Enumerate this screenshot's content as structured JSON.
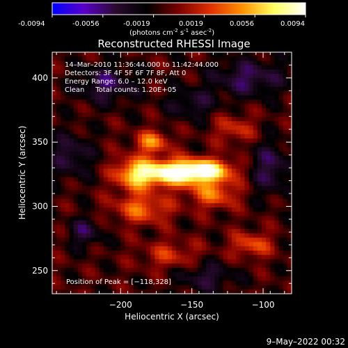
{
  "colorbar": {
    "ticks": [
      "-0.0094",
      "-0.0056",
      "-0.0019",
      "0.0019",
      "0.0056",
      "0.0094"
    ],
    "units_main": "(photons cm",
    "units_exp1": "-2",
    "units_mid": " s",
    "units_exp2": "-1",
    "units_end": " asec",
    "units_exp3": "-2",
    "units_close": ")",
    "stops": [
      "#0000ff",
      "#5a00c8",
      "#2a0a30",
      "#000000",
      "#7a0000",
      "#e03000",
      "#ff9000",
      "#ffff60",
      "#ffffff"
    ]
  },
  "chart_data": {
    "type": "heatmap",
    "title": "Reconstructed RHESSI Image",
    "xlabel": "Heliocentric X (arcsec)",
    "ylabel": "Heliocentric Y (arcsec)",
    "xlim": [
      -248,
      -80
    ],
    "ylim": [
      232,
      420
    ],
    "xticks": [
      -200,
      -150,
      -100
    ],
    "xtick_labels": [
      "−200",
      "−150",
      "−100"
    ],
    "yticks": [
      250,
      300,
      350,
      400
    ],
    "ytick_labels": [
      "250",
      "300",
      "350",
      "400"
    ],
    "value_range": [
      -0.0094,
      0.0094
    ],
    "peak": [
      -118,
      328
    ],
    "sources": [
      {
        "x": -165,
        "y": 326,
        "sx": 16,
        "sy": 7,
        "amp": 0.0094
      },
      {
        "x": -140,
        "y": 328,
        "sx": 14,
        "sy": 6,
        "amp": 0.0082
      },
      {
        "x": -190,
        "y": 325,
        "sx": 10,
        "sy": 9,
        "amp": 0.006
      },
      {
        "x": -178,
        "y": 350,
        "sx": 8,
        "sy": 6,
        "amp": 0.0055
      },
      {
        "x": -135,
        "y": 310,
        "sx": 12,
        "sy": 8,
        "amp": 0.0048
      },
      {
        "x": -185,
        "y": 298,
        "sx": 14,
        "sy": 8,
        "amp": 0.0046
      },
      {
        "x": -108,
        "y": 270,
        "sx": 10,
        "sy": 7,
        "amp": 0.004
      },
      {
        "x": -165,
        "y": 262,
        "sx": 14,
        "sy": 8,
        "amp": 0.003
      },
      {
        "x": -120,
        "y": 360,
        "sx": 10,
        "sy": 8,
        "amp": 0.003
      },
      {
        "x": -225,
        "y": 280,
        "sx": 8,
        "sy": 8,
        "amp": -0.0035
      },
      {
        "x": -210,
        "y": 395,
        "sx": 14,
        "sy": 10,
        "amp": -0.004
      },
      {
        "x": -110,
        "y": 400,
        "sx": 18,
        "sy": 10,
        "amp": -0.004
      },
      {
        "x": -95,
        "y": 330,
        "sx": 10,
        "sy": 14,
        "amp": -0.0038
      },
      {
        "x": -150,
        "y": 380,
        "sx": 12,
        "sy": 8,
        "amp": -0.003
      },
      {
        "x": -235,
        "y": 340,
        "sx": 10,
        "sy": 12,
        "amp": -0.0035
      },
      {
        "x": -140,
        "y": 245,
        "sx": 14,
        "sy": 8,
        "amp": -0.0032
      }
    ]
  },
  "annotations": {
    "line1": "14–Mar–2010 11:36:44.000 to 11:42:44.000",
    "line2": "Detectors: 3F 4F 5F 6F 7F 8F, Att 0",
    "line3": "Energy Range: 6.0 – 12.0 keV",
    "line4": "Clean     Total counts: 1.20E+05",
    "peak_label": "Position of Peak = [−118,328]"
  },
  "footer_date": "9–May–2022 00:32"
}
